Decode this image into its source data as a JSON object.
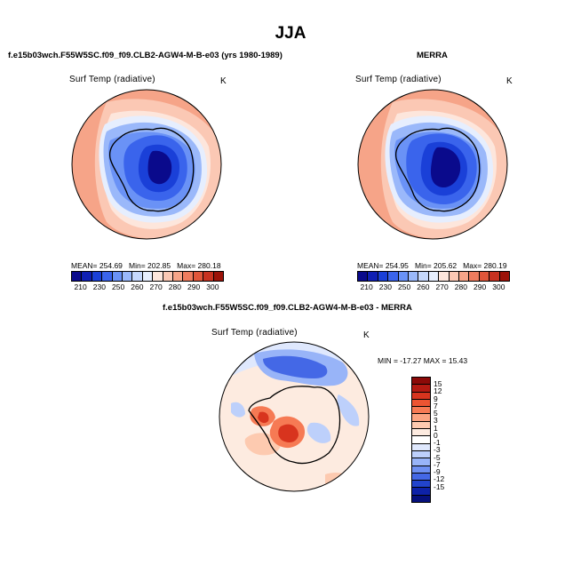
{
  "title": "JJA",
  "panels": [
    {
      "id": "model",
      "heading": "f.e15b03wch.F55W5SC.f09_f09.CLB2-AGW4-M-B-e03 (yrs 1980-1989)",
      "field": "Surf Temp (radiative)",
      "unit": "K",
      "mean_label": "MEAN=",
      "mean": "254.69",
      "min_label": "Min=",
      "min": "202.85",
      "max_label": "Max=",
      "max": "280.18"
    },
    {
      "id": "obs",
      "heading": "MERRA",
      "field": "Surf Temp (radiative)",
      "unit": "K",
      "mean_label": "MEAN=",
      "mean": "254.95",
      "min_label": "Min=",
      "min": "205.62",
      "max_label": "Max=",
      "max": "280.19"
    },
    {
      "id": "diff",
      "heading": "f.e15b03wch.F55W5SC.f09_f09.CLB2-AGW4-M-B-e03 - MERRA",
      "field": "Surf Temp (radiative)",
      "unit": "K",
      "minmax": "MIN = -17.27  MAX =  15.43"
    }
  ],
  "abs_colorbar": {
    "colors": [
      "#0a0a8c",
      "#0f1fb4",
      "#1a40d8",
      "#3a64ec",
      "#6a92f6",
      "#9ab8fa",
      "#c6d8fc",
      "#e6eefe",
      "#fde6dc",
      "#fbc8b4",
      "#f6a488",
      "#ee7c5e",
      "#e0563a",
      "#c83220",
      "#9c1208"
    ],
    "tick_labels": [
      "210",
      "230",
      "250",
      "260",
      "270",
      "280",
      "290",
      "300"
    ]
  },
  "diff_colorbar": {
    "colors": [
      "#8c0a08",
      "#b41a12",
      "#d8341e",
      "#ec5432",
      "#f67a54",
      "#fba482",
      "#fdcab0",
      "#fdebe0",
      "#ffffff",
      "#dfe8fd",
      "#bdd0fb",
      "#98b4f8",
      "#6e90f2",
      "#4468e6",
      "#2244cc",
      "#0e22a8",
      "#06107c"
    ],
    "tick_labels": [
      "15",
      "12",
      "9",
      "7",
      "5",
      "3",
      "1",
      "0",
      "-1",
      "-3",
      "-5",
      "-7",
      "-9",
      "-12",
      "-15"
    ]
  }
}
